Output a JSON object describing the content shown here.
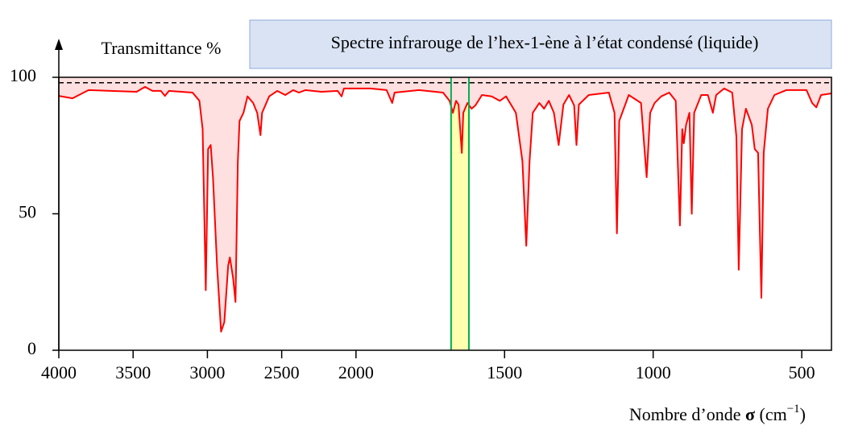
{
  "chart_data": {
    "type": "line",
    "title": "Spectre infrarouge de l’hex-1-ène à l’état condensé (liquide)",
    "y_label": "Transmittance %",
    "x_label": [
      "Nombre d’onde ",
      "σ",
      " (cm",
      "−1",
      ")"
    ],
    "xlim": [
      4000,
      400
    ],
    "x_scale_break": 2000,
    "xticks": [
      4000,
      3500,
      3000,
      2500,
      2000,
      1500,
      1000,
      500
    ],
    "ylim": [
      0,
      100
    ],
    "yticks": [
      0,
      50,
      100
    ],
    "reference_line": 98,
    "highlight_range": [
      1680,
      1620
    ],
    "highlight_color": "#ffffb0",
    "highlight_border": "#00b050",
    "fill_color": "#ffe0e0",
    "series": [
      {
        "color": "#ff0000",
        "x": [
          4000,
          3908,
          3800,
          3476,
          3420,
          3370,
          3313,
          3286,
          3259,
          3100,
          3054,
          3032,
          3011,
          2995,
          2978,
          2962,
          2935,
          2908,
          2886,
          2860,
          2849,
          2827,
          2811,
          2795,
          2784,
          2757,
          2730,
          2692,
          2665,
          2643,
          2632,
          2584,
          2530,
          2476,
          2422,
          2384,
          2341,
          2232,
          2124,
          2097,
          2081,
          1951,
          1897,
          1878,
          1870,
          1788,
          1707,
          1685,
          1674,
          1663,
          1655,
          1644,
          1639,
          1625,
          1611,
          1598,
          1576,
          1543,
          1516,
          1495,
          1462,
          1440,
          1427,
          1416,
          1405,
          1383,
          1367,
          1351,
          1334,
          1318,
          1302,
          1283,
          1266,
          1258,
          1250,
          1217,
          1149,
          1130,
          1122,
          1114,
          1082,
          1041,
          1022,
          1010,
          995,
          973,
          946,
          924,
          910,
          902,
          897,
          889,
          878,
          870,
          862,
          838,
          816,
          799,
          788,
          761,
          734,
          720,
          712,
          701,
          688,
          668,
          658,
          647,
          636,
          628,
          614,
          592,
          552,
          484,
          465,
          451,
          435,
          400
        ],
        "values": [
          93.2,
          92.3,
          95.3,
          94.7,
          96.5,
          95,
          95,
          93.2,
          95,
          94.4,
          91.4,
          81,
          22,
          73.7,
          75.2,
          63,
          31,
          6.8,
          10.3,
          31,
          34,
          26.5,
          17.7,
          69,
          84,
          87,
          93,
          90.6,
          87,
          78.8,
          87,
          93,
          95,
          93.5,
          95.3,
          94.4,
          95.3,
          94.7,
          95,
          93,
          95.9,
          95.9,
          95.3,
          90.6,
          94.4,
          95.3,
          94.4,
          91.4,
          87,
          91.4,
          90,
          72.3,
          87,
          90.6,
          88.5,
          89.7,
          93.5,
          93,
          91.4,
          93,
          87,
          69.3,
          38.3,
          69.3,
          87,
          90.6,
          88.5,
          91.4,
          87,
          75.2,
          90,
          93.5,
          89.7,
          75.2,
          90,
          93.5,
          94.4,
          87,
          42.8,
          84,
          93.5,
          90.6,
          63.4,
          87,
          90.6,
          93,
          94.4,
          91.4,
          45.7,
          81,
          75.8,
          82.6,
          87,
          50,
          87,
          93.5,
          93.5,
          87,
          93.5,
          95.9,
          94.4,
          78.2,
          29.5,
          81,
          88.5,
          82.6,
          73.7,
          72.3,
          19.2,
          72.3,
          88.5,
          93.5,
          95.3,
          95.3,
          90.6,
          89,
          93.5,
          94.1
        ]
      }
    ]
  }
}
